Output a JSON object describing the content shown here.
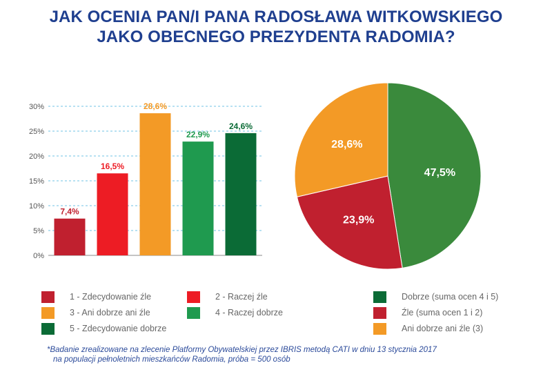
{
  "title": {
    "line1": "JAK OCENIA PAN/I PANA RADOSŁAWA WITKOWSKIEGO",
    "line2": "JAKO OBECNEGO PREZYDENTA RADOMIA?"
  },
  "chart_data": [
    {
      "type": "bar",
      "categories": [
        "1 - Zdecydowanie źle",
        "2 - Raczej źle",
        "3 - Ani dobrze ani źle",
        "4 - Raczej dobrze",
        "5 - Zdecydowanie dobrze"
      ],
      "values": [
        7.4,
        16.5,
        28.6,
        22.9,
        24.6
      ],
      "value_labels": [
        "7,4%",
        "16,5%",
        "28,6%",
        "22,9%",
        "24,6%"
      ],
      "colors": [
        "#c0202f",
        "#ed1c24",
        "#f39a26",
        "#1f9a4f",
        "#0b6b36"
      ],
      "ylim": [
        0,
        30
      ],
      "yticks": [
        0,
        5,
        10,
        15,
        20,
        25,
        30
      ],
      "ytick_labels": [
        "0%",
        "5%",
        "10%",
        "15%",
        "20%",
        "25%",
        "30%"
      ],
      "grid": true
    },
    {
      "type": "pie",
      "categories": [
        "Dobrze (suma ocen 4 i 5)",
        "Źle (suma ocen 1 i 2)",
        "Ani dobrze ani źle (3)"
      ],
      "values": [
        47.5,
        23.9,
        28.6
      ],
      "value_labels": [
        "47,5%",
        "23,9%",
        "28,6%"
      ],
      "colors": [
        "#3a8a3c",
        "#c0202f",
        "#f39a26"
      ]
    }
  ],
  "legend_left": [
    {
      "label": "1 - Zdecydowanie źle",
      "color": "#c0202f"
    },
    {
      "label": "2 - Raczej źle",
      "color": "#ed1c24"
    },
    {
      "label": "3 - Ani dobrze ani źle",
      "color": "#f39a26"
    },
    {
      "label": "4 - Raczej dobrze",
      "color": "#1f9a4f"
    },
    {
      "label": "5 - Zdecydowanie dobrze",
      "color": "#0b6b36"
    }
  ],
  "legend_right": [
    {
      "label": "Dobrze (suma ocen 4 i 5)",
      "color": "#0b6b36"
    },
    {
      "label": "Źle (suma ocen 1 i 2)",
      "color": "#c0202f"
    },
    {
      "label": "Ani dobrze ani źle (3)",
      "color": "#f39a26"
    }
  ],
  "footnote": {
    "line1": "*Badanie zrealizowane na zlecenie Platformy Obywatelskiej przez IBRIS metodą CATI w dniu 13 stycznia 2017",
    "line2": "na populacji pełnoletnich mieszkańców Radomia, próba = 500 osób"
  }
}
